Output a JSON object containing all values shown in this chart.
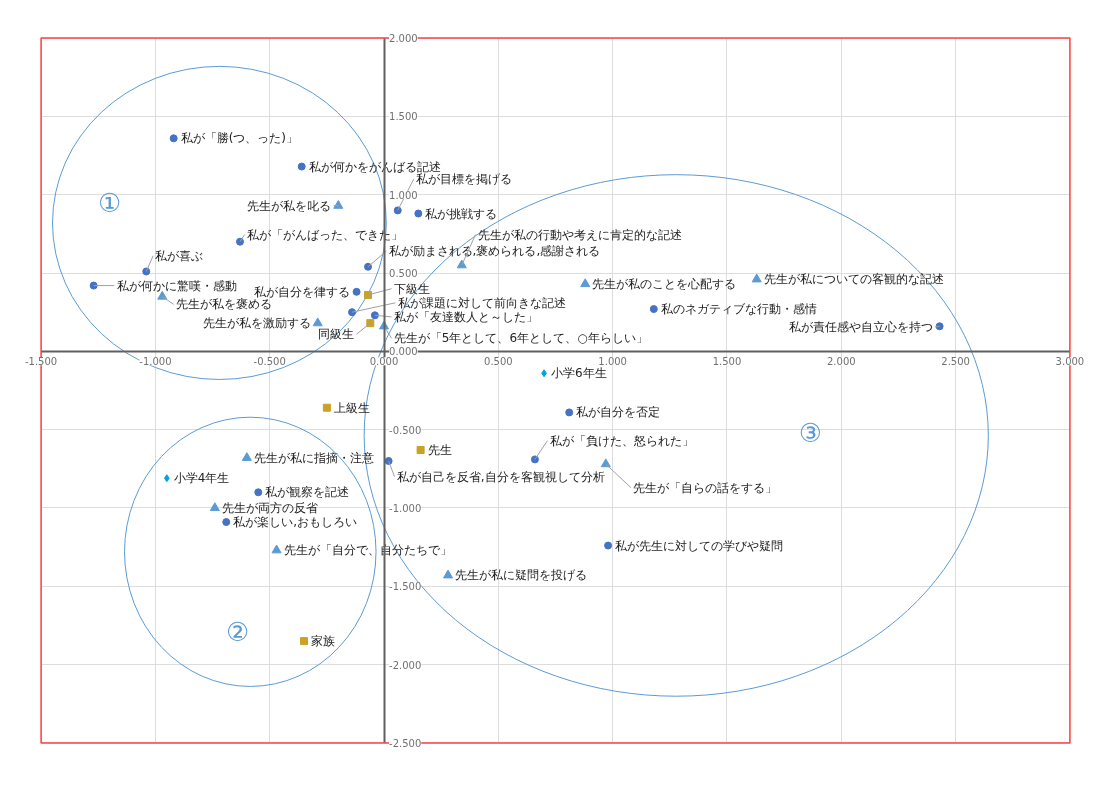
{
  "chart_data": {
    "type": "scatter",
    "xlim": [
      -1.5,
      3.0
    ],
    "ylim": [
      -2.5,
      2.0
    ],
    "xticks": [
      {
        "value": -1.5,
        "label": "-1.500"
      },
      {
        "value": -1.0,
        "label": "-1.000"
      },
      {
        "value": -0.5,
        "label": "-0.500"
      },
      {
        "value": 0,
        "label": "0.000"
      },
      {
        "value": 0.5,
        "label": "0.500"
      },
      {
        "value": 1.0,
        "label": "1.000"
      },
      {
        "value": 1.5,
        "label": "1.500"
      },
      {
        "value": 2.0,
        "label": "2.000"
      },
      {
        "value": 2.5,
        "label": "2.500"
      },
      {
        "value": 3.0,
        "label": "3.000"
      }
    ],
    "yticks": [
      {
        "value": -2.5,
        "label": "-2.500"
      },
      {
        "value": -2.0,
        "label": "-2.000"
      },
      {
        "value": -1.5,
        "label": "-1.500"
      },
      {
        "value": -1.0,
        "label": "-1.000"
      },
      {
        "value": -0.5,
        "label": "-0.500"
      },
      {
        "value": 0,
        "label": "0.000"
      },
      {
        "value": 0.5,
        "label": "0.500"
      },
      {
        "value": 1.0,
        "label": "1.000"
      },
      {
        "value": 1.5,
        "label": "1.500"
      },
      {
        "value": 2.0,
        "label": "2.000"
      }
    ],
    "grid": true,
    "series": [
      {
        "color": "#4472c4",
        "marker": "circle",
        "x": [
          -0.92,
          -0.36,
          0.06,
          0.15,
          -0.63,
          -1.04,
          -1.27,
          -0.07,
          -0.12,
          -0.14,
          -0.04,
          1.18,
          2.43,
          0.81,
          0.66,
          0.02,
          0.98,
          -0.55,
          -0.69
        ],
        "values": [
          1.36,
          1.18,
          0.9,
          0.88,
          0.7,
          0.51,
          0.42,
          0.54,
          0.38,
          0.25,
          0.23,
          0.27,
          0.16,
          -0.39,
          -0.69,
          -0.7,
          -1.24,
          -0.9,
          -1.09
        ]
      },
      {
        "color": "#5b9bd5",
        "marker": "triangle",
        "x": [
          -0.2,
          -0.97,
          -0.29,
          0.34,
          0.0,
          0.88,
          1.63,
          0.97,
          0.28,
          -0.6,
          -0.74,
          -0.47
        ],
        "values": [
          0.93,
          0.35,
          0.18,
          0.55,
          0.16,
          0.43,
          0.46,
          -0.72,
          -1.43,
          -0.68,
          -1.0,
          -1.27
        ]
      },
      {
        "color": "#c9a227",
        "marker": "square",
        "x": [
          -0.07,
          -0.06,
          -0.25,
          0.16,
          -0.35
        ],
        "values": [
          0.36,
          0.18,
          -0.36,
          -0.63,
          -1.85
        ]
      },
      {
        "color": "#00a2e8",
        "marker": "diamond",
        "x": [
          0.7,
          -0.95
        ],
        "values": [
          -0.14,
          -0.81
        ]
      }
    ],
    "annotations": [
      {
        "text": "私が「勝(つ、った)」",
        "x": -0.92,
        "y": 1.36
      },
      {
        "text": "私が何かをがんばる記述",
        "x": -0.36,
        "y": 1.18
      },
      {
        "text": "私が目標を掲げる",
        "x": 0.06,
        "y": 0.9
      },
      {
        "text": "私が挑戦する",
        "x": 0.15,
        "y": 0.88
      },
      {
        "text": "私が「がんばった、できた」",
        "x": -0.63,
        "y": 0.7
      },
      {
        "text": "私が喜ぶ",
        "x": -1.04,
        "y": 0.51
      },
      {
        "text": "私が何かに驚嘆・感動",
        "x": -1.27,
        "y": 0.42
      },
      {
        "text": "私が励まされる,褒められる,感謝される",
        "x": -0.07,
        "y": 0.54
      },
      {
        "text": "私が自分を律する",
        "x": -0.12,
        "y": 0.38
      },
      {
        "text": "私が課題に対して前向きな記述",
        "x": -0.14,
        "y": 0.25
      },
      {
        "text": "私が「友達数人と～した」",
        "x": -0.04,
        "y": 0.23
      },
      {
        "text": "私のネガティブな行動・感情",
        "x": 1.18,
        "y": 0.27
      },
      {
        "text": "私が責任感や自立心を持つ",
        "x": 2.43,
        "y": 0.16
      },
      {
        "text": "私が自分を否定",
        "x": 0.81,
        "y": -0.39
      },
      {
        "text": "私が「負けた、怒られた」",
        "x": 0.66,
        "y": -0.69
      },
      {
        "text": "私が自己を反省,自分を客観視して分析",
        "x": 0.02,
        "y": -0.7
      },
      {
        "text": "私が先生に対しての学びや疑問",
        "x": 0.98,
        "y": -1.24
      },
      {
        "text": "私が観察を記述",
        "x": -0.55,
        "y": -0.9
      },
      {
        "text": "私が楽しい,おもしろい",
        "x": -0.69,
        "y": -1.09
      },
      {
        "text": "先生が私を叱る",
        "x": -0.2,
        "y": 0.93
      },
      {
        "text": "先生が私を褒める",
        "x": -0.97,
        "y": 0.35
      },
      {
        "text": "先生が私を激励する",
        "x": -0.29,
        "y": 0.18
      },
      {
        "text": "先生が私の行動や考えに肯定的な記述",
        "x": 0.34,
        "y": 0.55
      },
      {
        "text": "先生が「5年として、6年として、○年らしい」",
        "x": 0.0,
        "y": 0.16
      },
      {
        "text": "先生が私のことを心配する",
        "x": 0.88,
        "y": 0.43
      },
      {
        "text": "先生が私についての客観的な記述",
        "x": 1.63,
        "y": 0.46
      },
      {
        "text": "先生が「自らの話をする」",
        "x": 0.97,
        "y": -0.72
      },
      {
        "text": "先生が私に疑問を投げる",
        "x": 0.28,
        "y": -1.43
      },
      {
        "text": "先生が私に指摘・注意",
        "x": -0.6,
        "y": -0.68
      },
      {
        "text": "先生が両方の反省",
        "x": -0.74,
        "y": -1.0
      },
      {
        "text": "先生が「自分で、自分たちで」",
        "x": -0.47,
        "y": -1.27
      },
      {
        "text": "下級生",
        "x": -0.07,
        "y": 0.36
      },
      {
        "text": "同級生",
        "x": -0.06,
        "y": 0.18
      },
      {
        "text": "上級生",
        "x": -0.25,
        "y": -0.36
      },
      {
        "text": "先生",
        "x": 0.16,
        "y": -0.63
      },
      {
        "text": "家族",
        "x": -0.35,
        "y": -1.85
      },
      {
        "text": "小学6年生",
        "x": 0.7,
        "y": -0.14
      },
      {
        "text": "小学4年生",
        "x": -0.95,
        "y": -0.81
      },
      "①",
      "②",
      "③"
    ]
  }
}
